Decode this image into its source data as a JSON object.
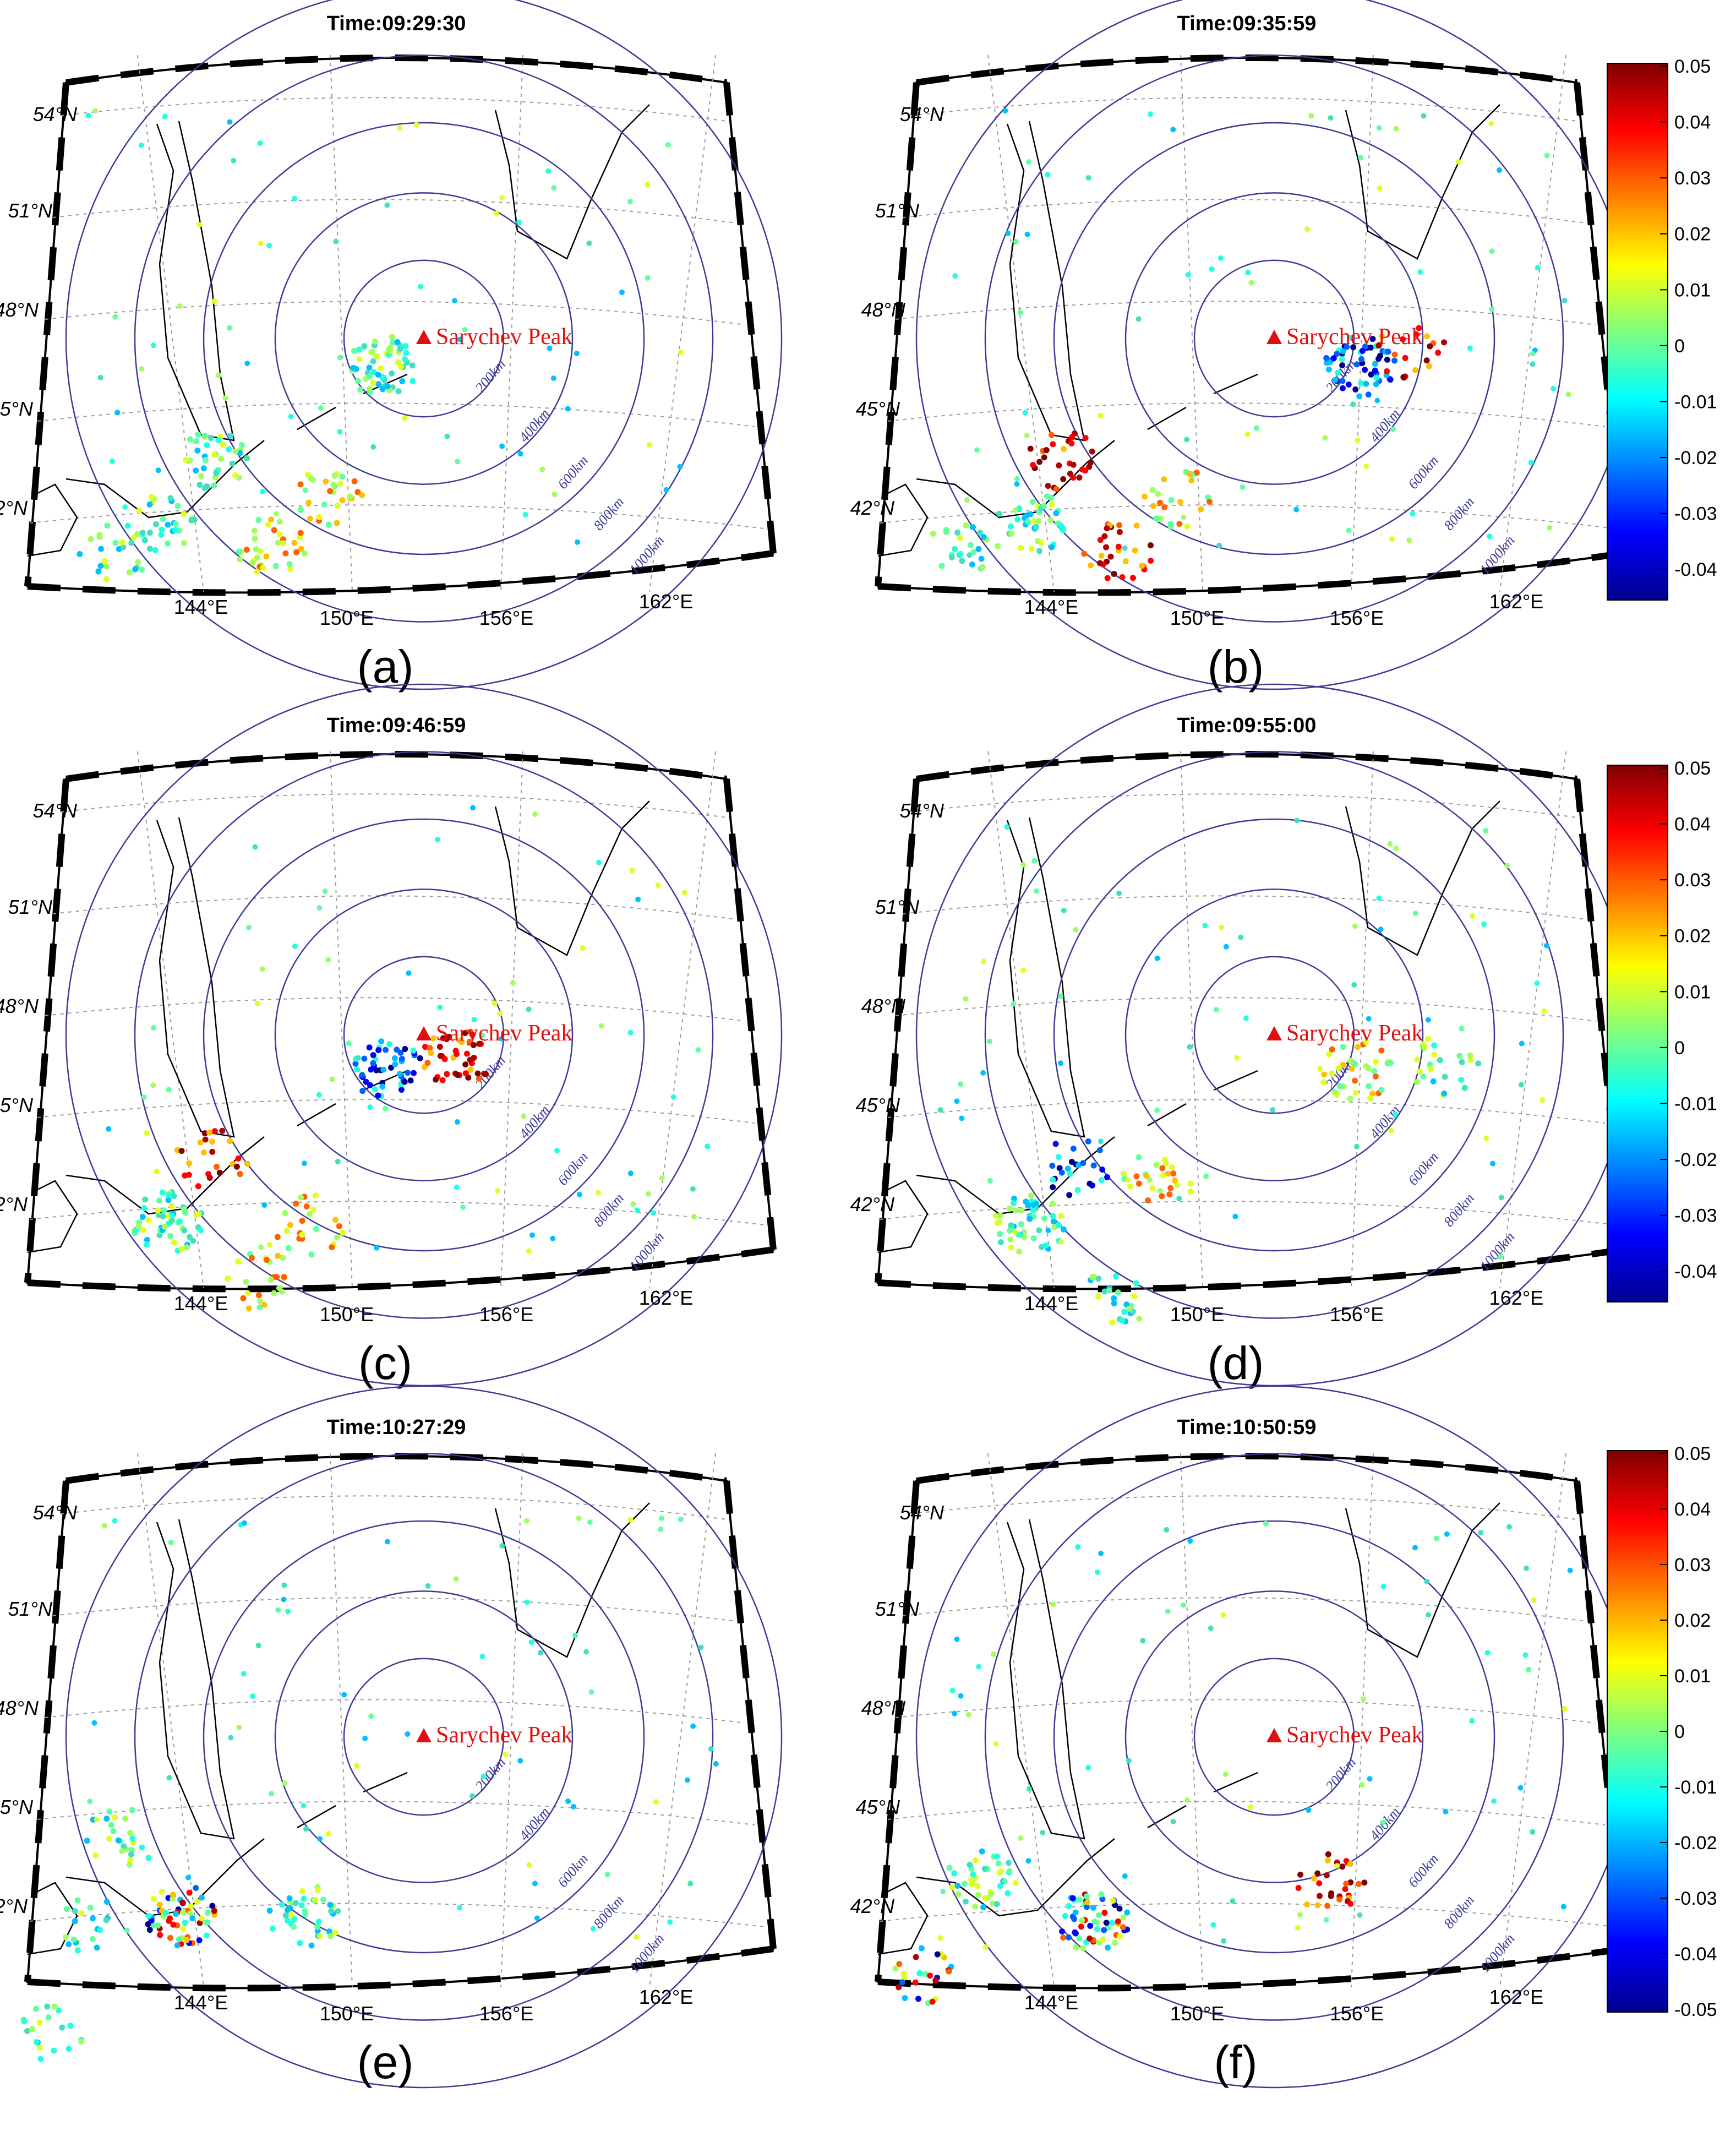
{
  "figure": {
    "volcano_label": "Sarychev Peak",
    "lat_labels": [
      "54°N",
      "51°N",
      "48°N",
      "45°N",
      "42°N"
    ],
    "lon_labels": [
      "144°E",
      "150°E",
      "156°E",
      "162°E"
    ],
    "ring_labels": [
      "200km",
      "400km",
      "600km",
      "800km",
      "1000km"
    ],
    "panels": [
      {
        "id": "a",
        "time": "Time:09:29:30",
        "letter": "(a)"
      },
      {
        "id": "b",
        "time": "Time:09:35:59",
        "letter": "(b)"
      },
      {
        "id": "c",
        "time": "Time:09:46:59",
        "letter": "(c)"
      },
      {
        "id": "d",
        "time": "Time:09:55:00",
        "letter": "(d)"
      },
      {
        "id": "e",
        "time": "Time:10:27:29",
        "letter": "(e)"
      },
      {
        "id": "f",
        "time": "Time:10:50:59",
        "letter": "(f)"
      }
    ],
    "colorbars": [
      {
        "ticks": [
          "0.05",
          "0.04",
          "0.03",
          "0.02",
          "0.01",
          "0",
          "-0.01",
          "-0.02",
          "-0.03",
          "-0.04"
        ]
      },
      {
        "ticks": [
          "0.05",
          "0.04",
          "0.03",
          "0.02",
          "0.01",
          "0",
          "-0.01",
          "-0.02",
          "-0.03",
          "-0.04"
        ]
      },
      {
        "ticks": [
          "0.05",
          "0.04",
          "0.03",
          "0.02",
          "0.01",
          "0",
          "-0.01",
          "-0.02",
          "-0.03",
          "-0.04",
          "-0.05"
        ]
      }
    ]
  },
  "colors": {
    "ring": "#3c3c96",
    "volcano": "#e01010",
    "grid": "#9a9a9a",
    "frame": "#000000"
  }
}
